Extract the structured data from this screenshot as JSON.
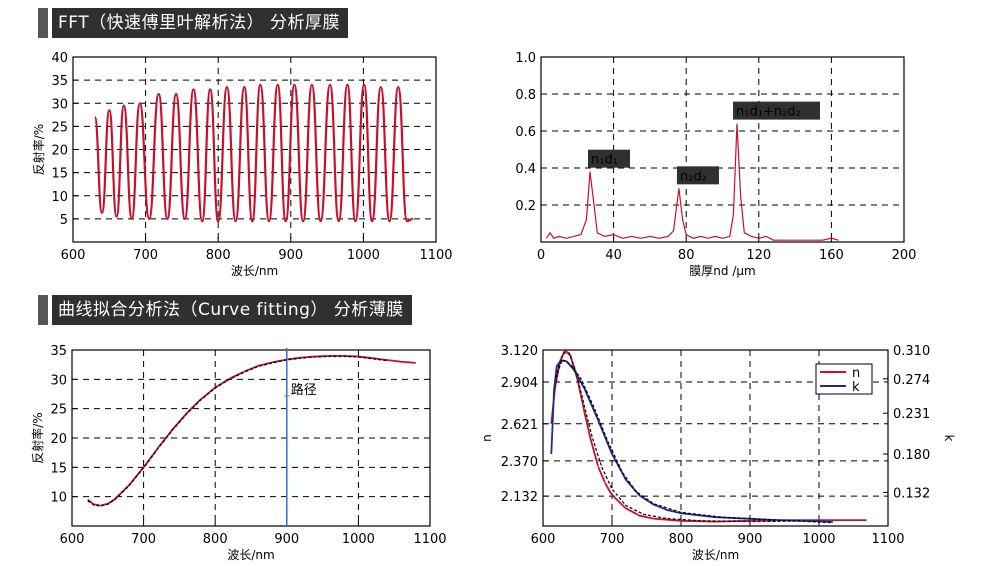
{
  "headers": {
    "fft": "FFT（快速傅里叶解析法） 分析厚膜",
    "curve": "曲线拟合分析法（Curve fitting） 分析薄膜"
  },
  "chart_data": [
    {
      "id": "fft-reflectance",
      "type": "line",
      "xlabel": "波长/nm",
      "ylabel": "反射率/%",
      "xlim": [
        600,
        1100
      ],
      "ylim": [
        0,
        40
      ],
      "xticks": [
        600,
        700,
        800,
        900,
        1000,
        1100
      ],
      "yticks": [
        5,
        10,
        15,
        20,
        25,
        30,
        35,
        40
      ],
      "grid": true,
      "series": [
        {
          "color": "#c8102e",
          "x_range": [
            630,
            1068
          ],
          "peaks": [
            [
              630,
              27
            ],
            [
              650,
              28.5
            ],
            [
              670,
              29.5
            ],
            [
              692,
              30
            ],
            [
              718,
              32
            ],
            [
              742,
              32
            ],
            [
              766,
              33
            ],
            [
              789,
              33
            ],
            [
              812,
              33.5
            ],
            [
              836,
              33.5
            ],
            [
              858,
              34
            ],
            [
              882,
              34
            ],
            [
              905,
              34
            ],
            [
              929,
              34
            ],
            [
              954,
              34
            ],
            [
              978,
              34
            ],
            [
              1001,
              34
            ],
            [
              1024,
              33.5
            ],
            [
              1048,
              33.5
            ]
          ],
          "valleys": [
            [
              640,
              6.3
            ],
            [
              660,
              5.5
            ],
            [
              681,
              5
            ],
            [
              705,
              5
            ],
            [
              730,
              5
            ],
            [
              754,
              5
            ],
            [
              778,
              4.5
            ],
            [
              800,
              4.5
            ],
            [
              824,
              4.5
            ],
            [
              847,
              4.5
            ],
            [
              870,
              4.5
            ],
            [
              893,
              4.5
            ],
            [
              917,
              4.5
            ],
            [
              941,
              4.5
            ],
            [
              966,
              4.5
            ],
            [
              989,
              4.5
            ],
            [
              1012,
              4.5
            ],
            [
              1036,
              4.5
            ],
            [
              1060,
              4.5
            ],
            [
              1068,
              5
            ]
          ]
        }
      ]
    },
    {
      "id": "fft-spectrum",
      "type": "line",
      "xlabel": "膜厚nd /μm",
      "ylabel": "",
      "xlim": [
        0,
        200
      ],
      "ylim": [
        0,
        1.0
      ],
      "xticks": [
        0,
        40,
        80,
        120,
        160,
        200
      ],
      "yticks": [
        0.2,
        0.4,
        0.6,
        0.8,
        1.0
      ],
      "ytick_labels": [
        "0.2",
        "0.4",
        "0.6",
        "0.8",
        "1.0"
      ],
      "grid": true,
      "annotations": [
        "n₁d₁",
        "n₂d₂",
        "n₁d₁+n₂d₂"
      ],
      "series": [
        {
          "color": "#c8102e",
          "points": [
            [
              3,
              0.02
            ],
            [
              5,
              0.05
            ],
            [
              7,
              0.02
            ],
            [
              10,
              0.03
            ],
            [
              14,
              0.02
            ],
            [
              18,
              0.03
            ],
            [
              22,
              0.04
            ],
            [
              25,
              0.12
            ],
            [
              27,
              0.38
            ],
            [
              29,
              0.22
            ],
            [
              31,
              0.05
            ],
            [
              35,
              0.03
            ],
            [
              40,
              0.04
            ],
            [
              45,
              0.02
            ],
            [
              50,
              0.03
            ],
            [
              55,
              0.02
            ],
            [
              60,
              0.03
            ],
            [
              65,
              0.02
            ],
            [
              70,
              0.03
            ],
            [
              73,
              0.06
            ],
            [
              76,
              0.29
            ],
            [
              78,
              0.12
            ],
            [
              80,
              0.04
            ],
            [
              84,
              0.02
            ],
            [
              88,
              0.03
            ],
            [
              92,
              0.02
            ],
            [
              96,
              0.03
            ],
            [
              100,
              0.02
            ],
            [
              104,
              0.03
            ],
            [
              106,
              0.15
            ],
            [
              108,
              0.64
            ],
            [
              110,
              0.25
            ],
            [
              112,
              0.05
            ],
            [
              116,
              0.03
            ],
            [
              120,
              0.02
            ],
            [
              124,
              0.03
            ],
            [
              128,
              0.01
            ],
            [
              135,
              0.01
            ],
            [
              145,
              0.01
            ],
            [
              155,
              0.01
            ],
            [
              160,
              0.02
            ],
            [
              164,
              0.01
            ]
          ]
        }
      ]
    },
    {
      "id": "curve-fit-reflectance",
      "type": "line",
      "xlabel": "波长/nm",
      "ylabel": "反射率/%",
      "xlim": [
        600,
        1100
      ],
      "ylim": [
        5,
        35
      ],
      "xticks": [
        600,
        700,
        800,
        900,
        1000,
        1100
      ],
      "yticks": [
        10,
        15,
        20,
        25,
        30,
        35
      ],
      "grid": true,
      "cursor": {
        "x": 900,
        "label": "路径"
      },
      "series": [
        {
          "role": "measured",
          "color": "#c8102e",
          "points": [
            [
              622,
              9.5
            ],
            [
              630,
              8.7
            ],
            [
              640,
              8.5
            ],
            [
              650,
              8.8
            ],
            [
              660,
              9.6
            ],
            [
              680,
              12.0
            ],
            [
              700,
              15.0
            ],
            [
              720,
              18.3
            ],
            [
              740,
              21.4
            ],
            [
              760,
              24.2
            ],
            [
              780,
              26.6
            ],
            [
              800,
              28.6
            ],
            [
              820,
              30.1
            ],
            [
              840,
              31.3
            ],
            [
              860,
              32.3
            ],
            [
              880,
              32.9
            ],
            [
              900,
              33.4
            ],
            [
              920,
              33.7
            ],
            [
              940,
              33.9
            ],
            [
              960,
              34.0
            ],
            [
              980,
              34.0
            ],
            [
              1000,
              33.9
            ],
            [
              1020,
              33.6
            ],
            [
              1040,
              33.3
            ],
            [
              1060,
              33.0
            ],
            [
              1080,
              32.8
            ]
          ]
        },
        {
          "role": "fit",
          "color": "#000000",
          "points": [
            [
              622,
              9.3
            ],
            [
              630,
              8.6
            ],
            [
              640,
              8.4
            ],
            [
              650,
              8.7
            ],
            [
              660,
              9.5
            ],
            [
              680,
              11.9
            ],
            [
              700,
              14.9
            ],
            [
              720,
              18.2
            ],
            [
              740,
              21.3
            ],
            [
              760,
              24.1
            ],
            [
              780,
              26.5
            ],
            [
              800,
              28.5
            ],
            [
              820,
              30.0
            ],
            [
              840,
              31.2
            ],
            [
              860,
              32.2
            ],
            [
              880,
              32.8
            ],
            [
              900,
              33.3
            ],
            [
              920,
              33.6
            ],
            [
              940,
              33.8
            ],
            [
              960,
              33.9
            ],
            [
              980,
              33.9
            ],
            [
              1000,
              33.8
            ],
            [
              1020,
              33.5
            ],
            [
              1040,
              33.2
            ]
          ]
        }
      ]
    },
    {
      "id": "nk-dispersion",
      "type": "line",
      "xlabel": "波长/nm",
      "ylabel": "n",
      "ylabel_right": "k",
      "xlim": [
        600,
        1100
      ],
      "ylim": [
        1.93,
        3.12
      ],
      "ylim_right": [
        0.09,
        0.31
      ],
      "xticks": [
        600,
        700,
        800,
        900,
        1000,
        1100
      ],
      "yticks": [
        2.132,
        2.37,
        2.621,
        2.904,
        3.12
      ],
      "ytick_labels": [
        "2.132",
        "2.370",
        "2.621",
        "2.904",
        "3.120"
      ],
      "yticks_right": [
        0.132,
        0.18,
        0.231,
        0.274,
        0.31
      ],
      "ytick_labels_right": [
        "0.132",
        "0.180",
        "0.231",
        "0.274",
        "0.310"
      ],
      "grid": true,
      "legend": {
        "placement": "top-right",
        "entries": [
          "n",
          "k"
        ]
      },
      "series": [
        {
          "name": "n",
          "color": "#c8102e",
          "points": [
            [
              612,
              2.62
            ],
            [
              618,
              2.88
            ],
            [
              625,
              3.05
            ],
            [
              632,
              3.12
            ],
            [
              640,
              3.08
            ],
            [
              650,
              2.92
            ],
            [
              660,
              2.7
            ],
            [
              670,
              2.5
            ],
            [
              680,
              2.33
            ],
            [
              690,
              2.22
            ],
            [
              700,
              2.14
            ],
            [
              720,
              2.05
            ],
            [
              740,
              2.0
            ],
            [
              760,
              1.98
            ],
            [
              800,
              1.965
            ],
            [
              850,
              1.96
            ],
            [
              900,
              1.965
            ],
            [
              950,
              1.97
            ],
            [
              1000,
              1.97
            ],
            [
              1068,
              1.97
            ]
          ]
        },
        {
          "name": "n-fit",
          "color": "#000000",
          "points": [
            [
              615,
              2.8
            ],
            [
              622,
              3.0
            ],
            [
              630,
              3.1
            ],
            [
              638,
              3.1
            ],
            [
              648,
              2.97
            ],
            [
              660,
              2.74
            ],
            [
              672,
              2.52
            ],
            [
              685,
              2.33
            ],
            [
              700,
              2.18
            ],
            [
              720,
              2.07
            ],
            [
              745,
              2.01
            ],
            [
              780,
              1.98
            ],
            [
              830,
              1.965
            ],
            [
              900,
              1.96
            ],
            [
              1000,
              1.965
            ]
          ]
        },
        {
          "name": "k",
          "color": "#1a2d8a",
          "points": [
            [
              612,
              0.18
            ],
            [
              616,
              0.26
            ],
            [
              620,
              0.29
            ],
            [
              626,
              0.297
            ],
            [
              634,
              0.296
            ],
            [
              645,
              0.285
            ],
            [
              660,
              0.262
            ],
            [
              680,
              0.222
            ],
            [
              700,
              0.18
            ],
            [
              720,
              0.148
            ],
            [
              740,
              0.128
            ],
            [
              760,
              0.117
            ],
            [
              780,
              0.11
            ],
            [
              800,
              0.106
            ],
            [
              850,
              0.101
            ],
            [
              900,
              0.099
            ],
            [
              950,
              0.097
            ],
            [
              1000,
              0.096
            ],
            [
              1020,
              0.095
            ]
          ]
        },
        {
          "name": "k-fit",
          "color": "#000000",
          "points": [
            [
              618,
              0.275
            ],
            [
              628,
              0.298
            ],
            [
              640,
              0.292
            ],
            [
              655,
              0.274
            ],
            [
              675,
              0.236
            ],
            [
              695,
              0.194
            ],
            [
              715,
              0.157
            ],
            [
              735,
              0.133
            ],
            [
              760,
              0.118
            ],
            [
              800,
              0.107
            ],
            [
              860,
              0.101
            ],
            [
              950,
              0.097
            ],
            [
              1020,
              0.094
            ]
          ]
        }
      ]
    }
  ]
}
